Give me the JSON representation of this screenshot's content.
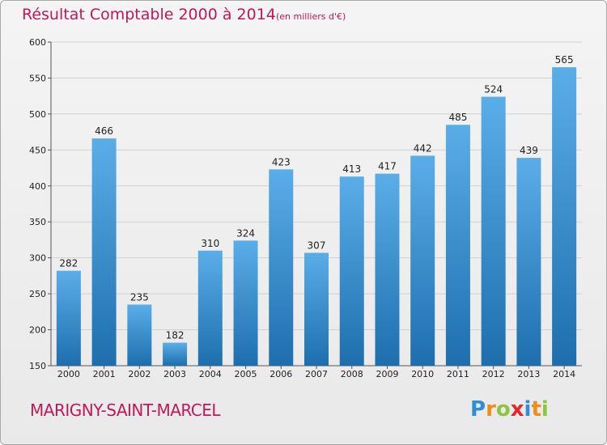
{
  "header": {
    "title": "Résultat Comptable 2000 à 2014",
    "unit": "(en milliers d'€)"
  },
  "footer": {
    "city": "MARIGNY-SAINT-MARCEL",
    "logo_text": "Proxiti"
  },
  "colors": {
    "title": "#c0185a",
    "bar_top": "#5aaee8",
    "bar_bottom": "#1e6eae",
    "grid": "#d0d0d0"
  },
  "chart_data": {
    "type": "bar",
    "title": "Résultat Comptable 2000 à 2014",
    "xlabel": "",
    "ylabel": "",
    "categories": [
      "2000",
      "2001",
      "2002",
      "2003",
      "2004",
      "2005",
      "2006",
      "2007",
      "2008",
      "2009",
      "2010",
      "2011",
      "2012",
      "2013",
      "2014"
    ],
    "values": [
      282,
      466,
      235,
      182,
      310,
      324,
      423,
      307,
      413,
      417,
      442,
      485,
      524,
      439,
      565
    ],
    "ylim": [
      150,
      600
    ],
    "yticks": [
      150,
      200,
      250,
      300,
      350,
      400,
      450,
      500,
      550,
      600
    ],
    "grid": true,
    "legend": "none"
  }
}
